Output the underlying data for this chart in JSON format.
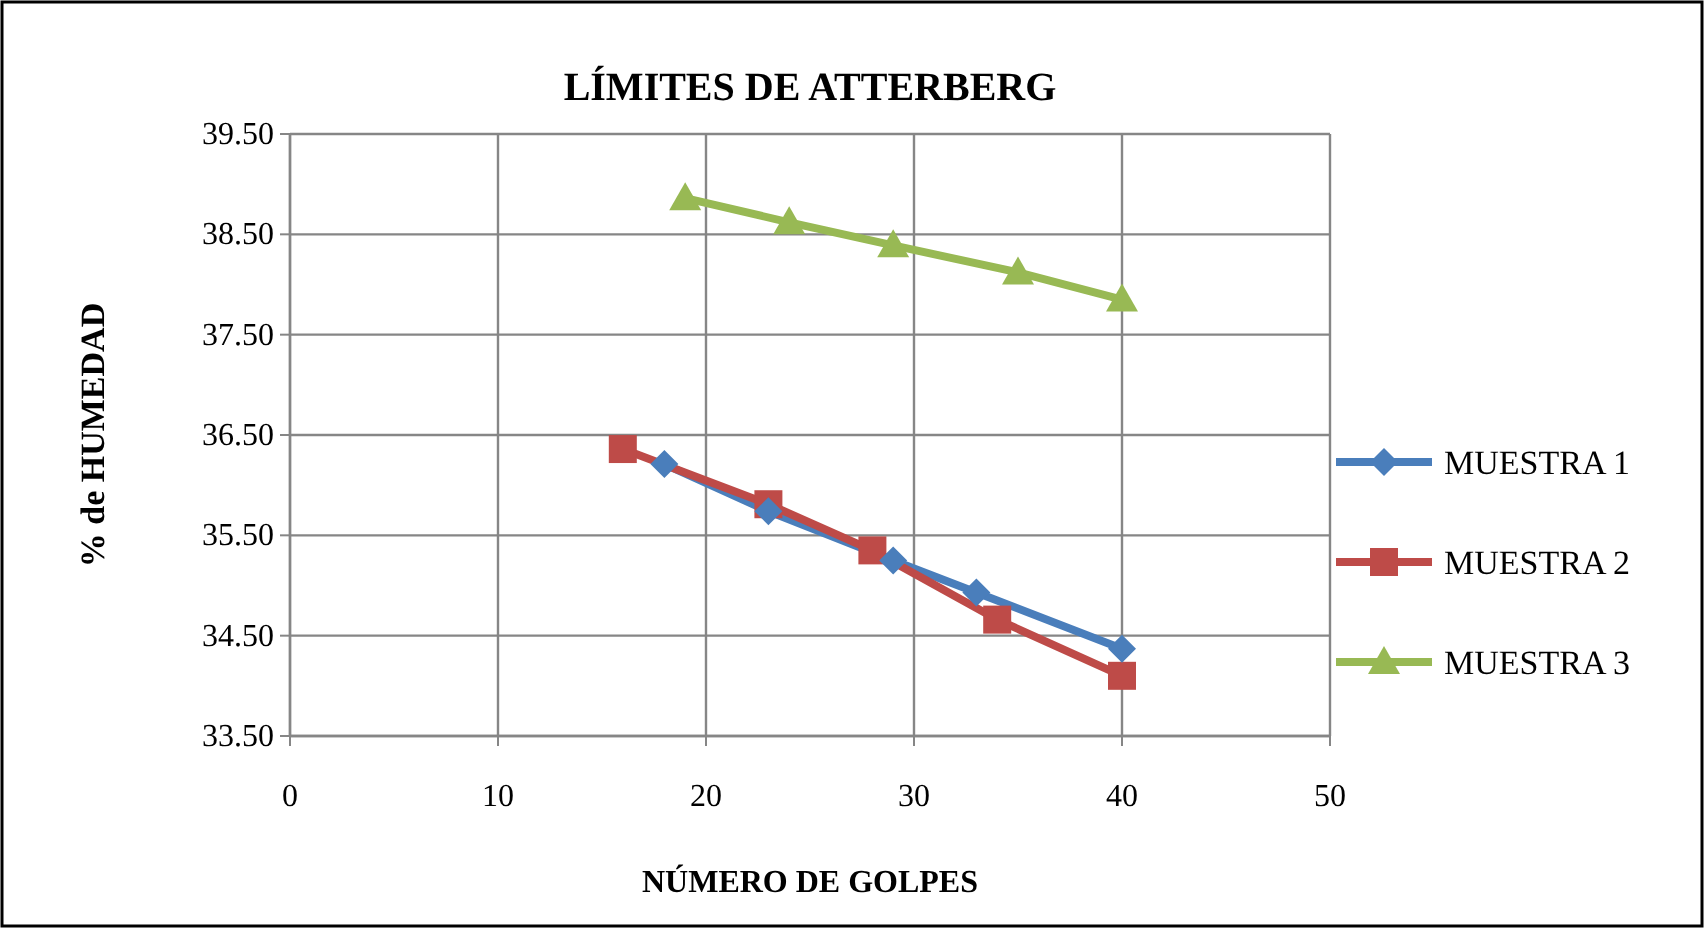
{
  "chart_data": {
    "type": "line",
    "title": "LÍMITES DE ATTERBERG",
    "xlabel": "NÚMERO DE GOLPES",
    "ylabel": "% de HUMEDAD",
    "xlim": [
      0,
      50
    ],
    "xticks": [
      0,
      10,
      20,
      30,
      40,
      50
    ],
    "ylim": [
      33.5,
      39.5
    ],
    "yticks": [
      {
        "value": 33.5,
        "label": "33.50"
      },
      {
        "value": 34.5,
        "label": "34.50"
      },
      {
        "value": 35.5,
        "label": "35.50"
      },
      {
        "value": 36.5,
        "label": "36.50"
      },
      {
        "value": 37.5,
        "label": "37.50"
      },
      {
        "value": 38.5,
        "label": "38.50"
      },
      {
        "value": 39.5,
        "label": "39.50"
      }
    ],
    "grid": true,
    "legend": "right",
    "series": [
      {
        "name": "MUESTRA 1",
        "color": "#4a7ebb",
        "marker": "diamond",
        "x": [
          18,
          23,
          29,
          33,
          40
        ],
        "values": [
          36.21,
          35.74,
          35.25,
          34.93,
          34.37
        ]
      },
      {
        "name": "MUESTRA 2",
        "color": "#be4b48",
        "marker": "square",
        "x": [
          16,
          23,
          28,
          34,
          40
        ],
        "values": [
          36.36,
          35.81,
          35.35,
          34.66,
          34.1
        ]
      },
      {
        "name": "MUESTRA 3",
        "color": "#98b954",
        "marker": "triangle",
        "x": [
          19,
          24,
          29,
          35,
          40
        ],
        "values": [
          38.86,
          38.62,
          38.39,
          38.12,
          37.85
        ]
      }
    ]
  }
}
